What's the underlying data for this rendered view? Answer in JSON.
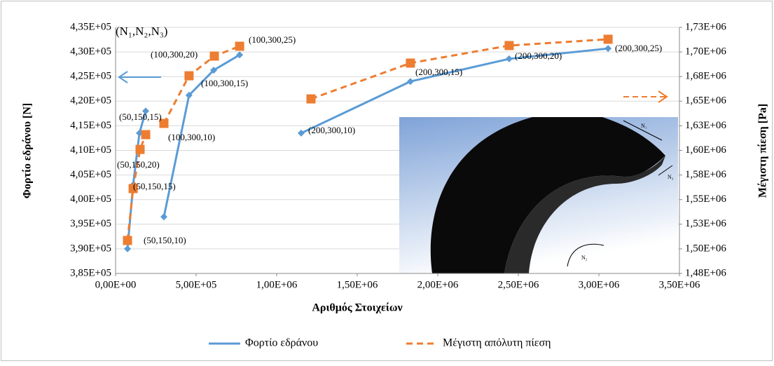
{
  "chart_data": {
    "type": "line",
    "x_label": "Αριθμός Στοιχείων",
    "y_label": "Φορτίο εδράνου [N]",
    "y2_label": "Μέγιστη πίεση [Pa]",
    "xlim": [
      0,
      3500000
    ],
    "xticks": [
      {
        "value": 0,
        "label": "0,00E+00"
      },
      {
        "value": 500000,
        "label": "5,00E+05"
      },
      {
        "value": 1000000,
        "label": "1,00E+06"
      },
      {
        "value": 1500000,
        "label": "1,50E+06"
      },
      {
        "value": 2000000,
        "label": "2,00E+06"
      },
      {
        "value": 2500000,
        "label": "2,50E+06"
      },
      {
        "value": 3000000,
        "label": "3,00E+06"
      },
      {
        "value": 3500000,
        "label": "3,50E+06"
      }
    ],
    "ylim": [
      385000,
      435000
    ],
    "yticks": [
      {
        "value": 385000,
        "label": "3,85E+05"
      },
      {
        "value": 390000,
        "label": "3,90E+05"
      },
      {
        "value": 395000,
        "label": "3,95E+05"
      },
      {
        "value": 400000,
        "label": "4,00E+05"
      },
      {
        "value": 405000,
        "label": "4,05E+05"
      },
      {
        "value": 410000,
        "label": "4,10E+05"
      },
      {
        "value": 415000,
        "label": "4,15E+05"
      },
      {
        "value": 420000,
        "label": "4,20E+05"
      },
      {
        "value": 425000,
        "label": "4,25E+05"
      },
      {
        "value": 430000,
        "label": "4,30E+05"
      },
      {
        "value": 435000,
        "label": "4,35E+05"
      }
    ],
    "y2lim": [
      1475000,
      1725000
    ],
    "y2ticks": [
      {
        "value": 1475000,
        "label": "1,48E+06"
      },
      {
        "value": 1500000,
        "label": "1,50E+06"
      },
      {
        "value": 1525000,
        "label": "1,53E+06"
      },
      {
        "value": 1550000,
        "label": "1,55E+06"
      },
      {
        "value": 1575000,
        "label": "1,58E+06"
      },
      {
        "value": 1600000,
        "label": "1,60E+06"
      },
      {
        "value": 1625000,
        "label": "1,63E+06"
      },
      {
        "value": 1650000,
        "label": "1,65E+06"
      },
      {
        "value": 1675000,
        "label": "1,68E+06"
      },
      {
        "value": 1700000,
        "label": "1,70E+06"
      },
      {
        "value": 1725000,
        "label": "1,73E+06"
      }
    ],
    "series": [
      {
        "name": "Φορτίο εδράνου",
        "color": "#5b9bd5",
        "marker": "diamond",
        "dashed": false,
        "x": [
          74000,
          109000,
          148000,
          187000,
          null,
          300000,
          456000,
          609000,
          770000,
          null,
          1152000,
          1830000,
          2443000,
          3057000
        ],
        "values": [
          390000,
          403000,
          413500,
          418000,
          null,
          396500,
          421200,
          426300,
          429400,
          null,
          413500,
          424000,
          428600,
          430700
        ]
      },
      {
        "name": "Μέγιστη απόλυτη πίεση",
        "color": "#ed7d31",
        "marker": "square",
        "dashed": true,
        "axis": "y2",
        "x": [
          74000,
          109000,
          152000,
          187000,
          null,
          300000,
          456000,
          613000,
          770000,
          null,
          1213000,
          1830000,
          2443000,
          3057000
        ],
        "values": [
          1508500,
          1561200,
          1601000,
          1616000,
          null,
          1627400,
          1675800,
          1695800,
          1705800,
          null,
          1652300,
          1688700,
          1706500,
          1712900
        ]
      }
    ],
    "annotation_header": "(N₁,N₂,N₃)",
    "annotations": [
      "(50,150,10)",
      "(50,150,15)",
      "(50,150,20)",
      "(50,150,15)",
      "(100,300,10)",
      "(100,300,15)",
      "(100,300,20)",
      "(100,300,25)",
      "(200,300,10)",
      "(200,300,15)",
      "(200,300,20)",
      "(200,300,25)"
    ],
    "inset_labels": [
      "N₁",
      "N₂",
      "N₃"
    ]
  }
}
